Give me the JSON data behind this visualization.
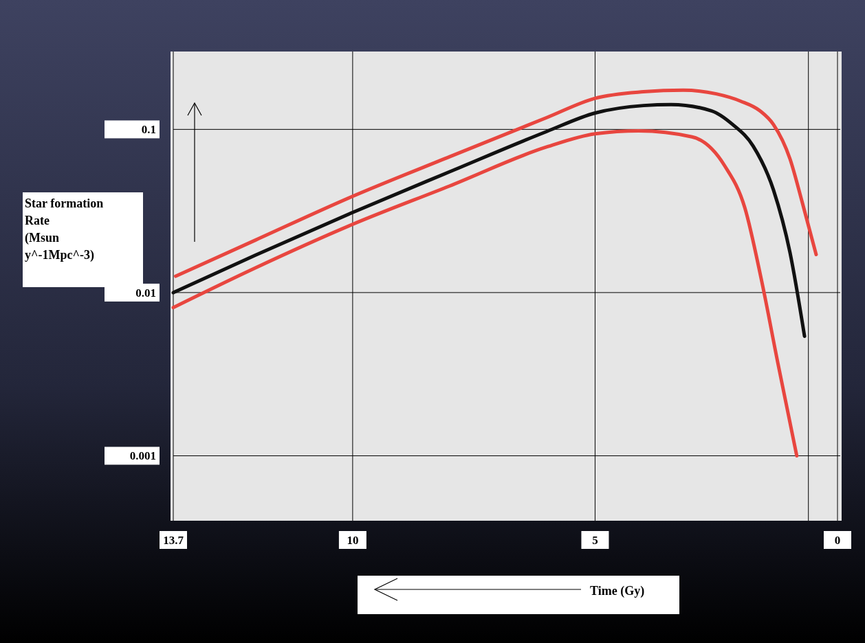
{
  "chart_data": {
    "type": "line",
    "xlabel": "Time (Gy)",
    "ylabel": "Star formation\nRate\n(Msun\ny^-1Mpc^-3)",
    "xlim": [
      13.7,
      0
    ],
    "xticks": [
      13.7,
      10,
      5,
      {
        "value": 0.6,
        "label": null
      },
      0
    ],
    "ylim": [
      0.0004,
      0.3
    ],
    "yticks": [
      0.1,
      0.01,
      0.001
    ],
    "log": "y",
    "grid": true,
    "series": [
      {
        "color": "#e8463f",
        "x": [
          13.65,
          12,
          10,
          8,
          6,
          5,
          4,
          3.18,
          2.5,
          2,
          1.6,
          1.32,
          0.98,
          0.73,
          0.44
        ],
        "values": [
          0.0126,
          0.021,
          0.0389,
          0.068,
          0.118,
          0.155,
          0.17,
          0.174,
          0.165,
          0.149,
          0.13,
          0.107,
          0.066,
          0.036,
          0.0171
        ]
      },
      {
        "color": "#111111",
        "x": [
          13.7,
          12,
          10,
          8,
          6,
          5,
          4,
          3.43,
          2.6,
          2.16,
          1.74,
          1.32,
          0.98,
          0.68
        ],
        "values": [
          0.01,
          0.017,
          0.031,
          0.055,
          0.097,
          0.126,
          0.14,
          0.142,
          0.13,
          0.107,
          0.079,
          0.0425,
          0.0176,
          0.0054
        ]
      },
      {
        "color": "#e8463f",
        "x": [
          13.7,
          12,
          10,
          8,
          6,
          5,
          4.1,
          3,
          2.33,
          1.91,
          1.57,
          1.23,
          0.84
        ],
        "values": [
          0.0081,
          0.0142,
          0.0262,
          0.045,
          0.078,
          0.094,
          0.098,
          0.09,
          0.06,
          0.033,
          0.012,
          0.0037,
          0.001
        ]
      }
    ]
  }
}
